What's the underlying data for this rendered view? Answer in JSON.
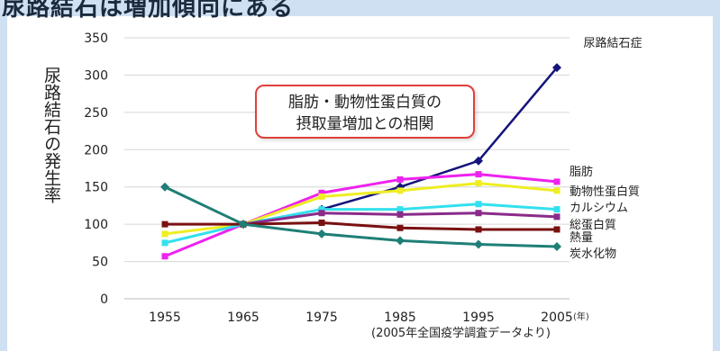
{
  "page": {
    "banner_text": "尿路結石は増加傾向にある"
  },
  "chart_data": {
    "type": "line",
    "y_axis_title": "尿路結石の発生率",
    "x_unit_label": "(年)",
    "callout_lines": [
      "脂肪・動物性蛋白質の",
      "摂取量増加との相関"
    ],
    "source_note": "(2005年全国疫学調査データより)",
    "x": [
      1955,
      1965,
      1975,
      1985,
      1995,
      2005
    ],
    "xlim": [
      1955,
      2005
    ],
    "ylim": [
      0,
      350
    ],
    "yticks": [
      0,
      50,
      100,
      150,
      200,
      250,
      300,
      350
    ],
    "grid": "horizontal",
    "series": [
      {
        "name": "尿路結石症",
        "color": "#14147a",
        "marker": "diamond",
        "values": [
          null,
          100,
          120,
          150,
          185,
          310
        ]
      },
      {
        "name": "脂肪",
        "color": "#ee22ee",
        "marker": "square",
        "values": [
          57,
          100,
          142,
          160,
          167,
          157
        ]
      },
      {
        "name": "動物性蛋白質",
        "color": "#eeee22",
        "marker": "square",
        "values": [
          87,
          100,
          137,
          145,
          155,
          145
        ]
      },
      {
        "name": "カルシウム",
        "color": "#33e0ee",
        "marker": "square",
        "values": [
          75,
          100,
          120,
          120,
          127,
          120
        ]
      },
      {
        "name": "総蛋白質",
        "color": "#8a2b8a",
        "marker": "square",
        "values": [
          null,
          100,
          115,
          113,
          115,
          110
        ]
      },
      {
        "name": "熱量",
        "color": "#7a1010",
        "marker": "square",
        "values": [
          100,
          100,
          102,
          95,
          93,
          93
        ]
      },
      {
        "name": "炭水化物",
        "color": "#1f7f76",
        "marker": "diamond",
        "values": [
          150,
          100,
          87,
          78,
          73,
          70
        ]
      }
    ]
  },
  "colors": {
    "banner_band": "#cfe0f2",
    "callout_border": "#e0403a"
  }
}
